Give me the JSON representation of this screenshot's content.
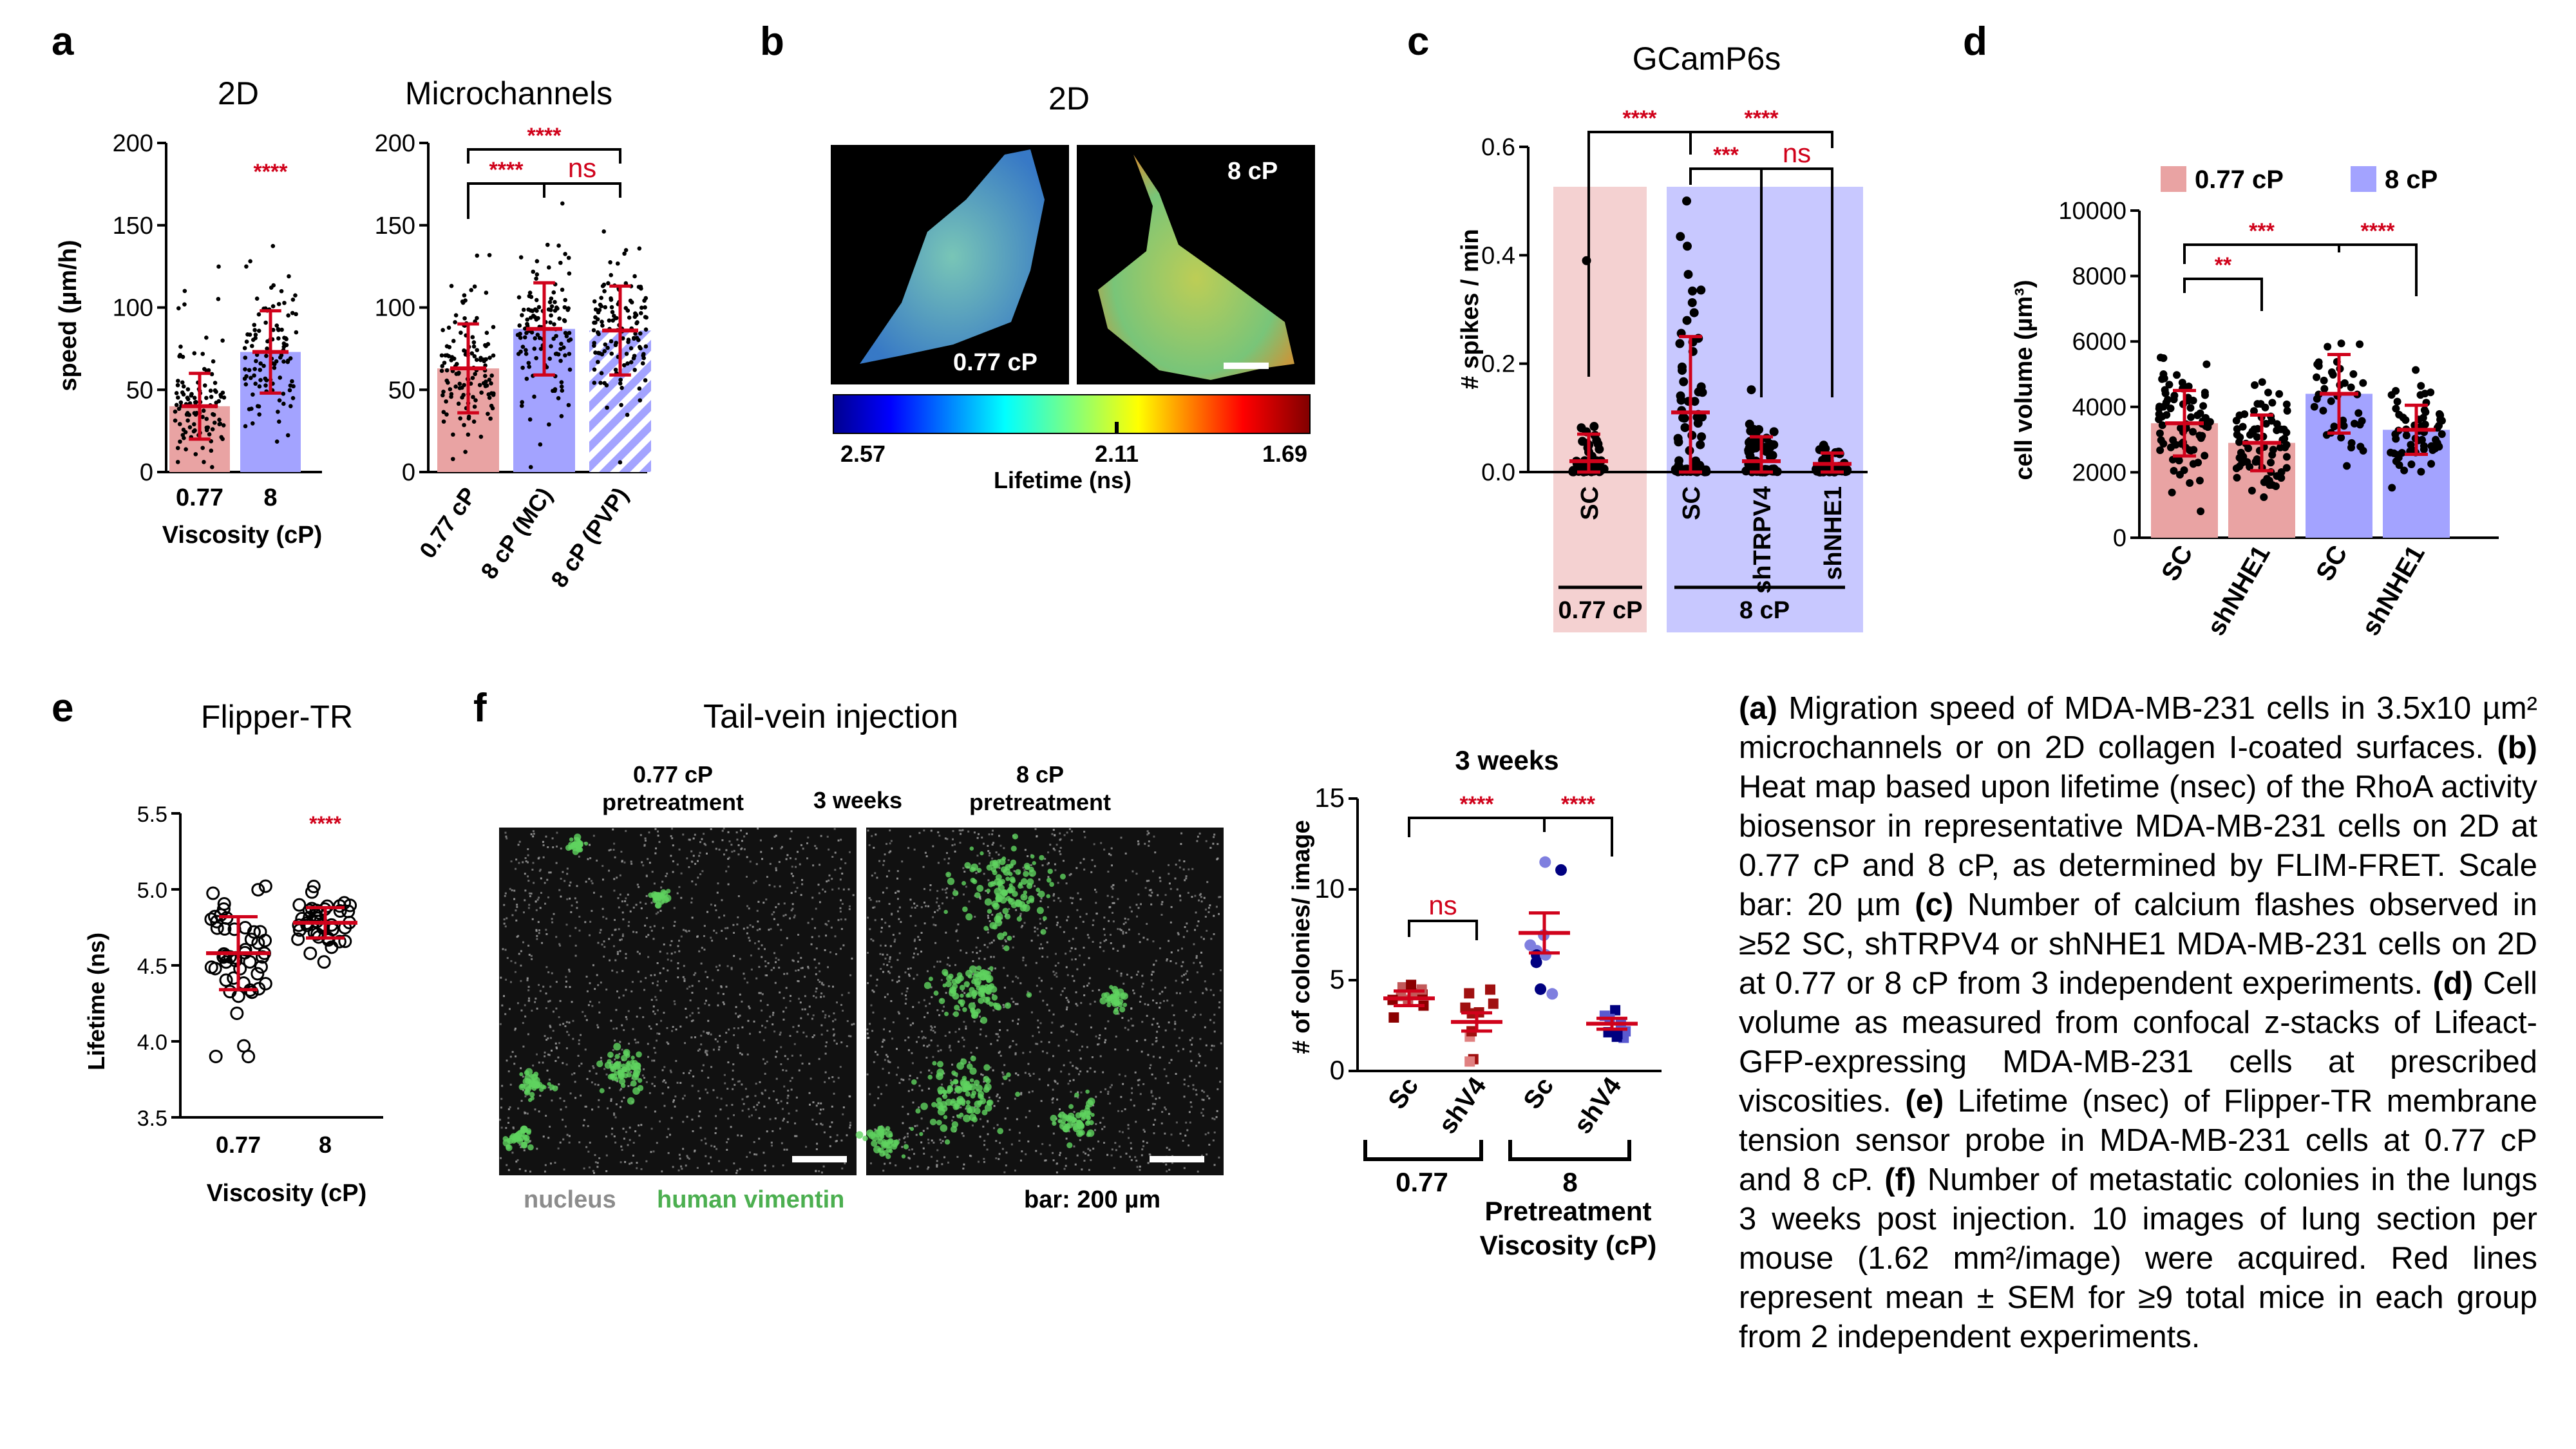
{
  "panels": {
    "a": {
      "letter": "a",
      "title_2d": "2D",
      "title_mc": "Microchannels",
      "ylabel": "speed (µm/h)",
      "xlabel": "Viscosity (cP)",
      "yticks": [
        "0",
        "50",
        "100",
        "150",
        "200"
      ],
      "cats_2d": [
        "0.77",
        "8"
      ],
      "cats_mc": [
        "0.77 cP",
        "8 cP (MC)",
        "8 cP (PVP)"
      ],
      "sig_2d": "****",
      "sig_mc_1": "****",
      "sig_mc_2": "****",
      "sig_mc_3": "ns"
    },
    "b": {
      "letter": "b",
      "title": "2D",
      "label_left": "0.77 cP",
      "label_right": "8 cP",
      "cb_ticks": [
        "2.57",
        "2.11",
        "1.69"
      ],
      "cb_label": "Lifetime (ns)"
    },
    "c": {
      "letter": "c",
      "title": "GCamP6s",
      "ylabel": "# spikes / min",
      "yticks": [
        "0.0",
        "0.2",
        "0.4",
        "0.6"
      ],
      "cats": [
        "SC",
        "SC",
        "shTRPV4",
        "shNHE1"
      ],
      "group_1": "0.77 cP",
      "group_2": "8 cP",
      "sig_1": "****",
      "sig_2": "****",
      "sig_3": "***",
      "sig_4": "ns"
    },
    "d": {
      "letter": "d",
      "legend_1": "0.77 cP",
      "legend_2": "8 cP",
      "ylabel": "cell volume (µm³)",
      "yticks": [
        "0",
        "2000",
        "4000",
        "6000",
        "8000",
        "10000"
      ],
      "cats": [
        "SC",
        "shNHE1",
        "SC",
        "shNHE1"
      ],
      "sig_1": "**",
      "sig_2": "***",
      "sig_3": "****"
    },
    "e": {
      "letter": "e",
      "title": "Flipper-TR",
      "ylabel": "Lifetime (ns)",
      "xlabel": "Viscosity (cP)",
      "yticks": [
        "3.5",
        "4.0",
        "4.5",
        "5.0",
        "5.5"
      ],
      "cats": [
        "0.77",
        "8"
      ],
      "sig": "****"
    },
    "f": {
      "letter": "f",
      "title": "Tail-vein injection",
      "img_label_left": "0.77 cP\npretreatment",
      "img_label_mid": "3 weeks",
      "img_label_right": "8 cP\npretreatment",
      "legend_nucleus": "nucleus",
      "legend_vimentin": "human vimentin",
      "scalebar": "bar: 200 µm",
      "chart_title": "3 weeks",
      "ylabel": "# of colonies/ image",
      "yticks": [
        "0",
        "5",
        "10",
        "15"
      ],
      "cats": [
        "Sc",
        "shV4",
        "Sc",
        "shV4"
      ],
      "group_1": "0.77",
      "group_2": "8",
      "xlabel": "Pretreatment\nViscosity (cP)",
      "sig_1": "****",
      "sig_2": "****",
      "sig_3": "ns"
    }
  },
  "caption": [
    {
      "bold": "(a)",
      "text": " Migration speed of MDA-MB-231 cells in 3.5x10 µm² microchannels or on 2D collagen I-coated surfaces. "
    },
    {
      "bold": "(b)",
      "text": " Heat map based upon lifetime (nsec) of the RhoA activity biosensor in representative MDA-MB-231 cells on 2D at 0.77 cP and 8 cP, as determined by FLIM-FRET. Scale bar: 20 µm "
    },
    {
      "bold": "(c)",
      "text": " Number of calcium flashes observed in ≥52 SC, shTRPV4 or shNHE1 MDA-MB-231 cells on 2D at 0.77 or 8 cP from 3 independent experiments. "
    },
    {
      "bold": "(d)",
      "text": " Cell volume as measured from confocal z-stacks of Lifeact-GFP-expressing MDA-MB-231 cells at prescribed viscosities. "
    },
    {
      "bold": "(e)",
      "text": " Lifetime (nsec) of Flipper-TR membrane tension sensor probe in MDA-MB-231 cells at 0.77 cP and 8 cP. "
    },
    {
      "bold": "(f)",
      "text": " Number of metastatic colonies in the lungs 3 weeks post injection. 10 images of lung section per mouse (1.62 mm²/image) were acquired. Red lines represent mean ± SEM for ≥9 total mice in each group from 2 independent experiments."
    }
  ],
  "colors": {
    "pink": "#e9a3a3",
    "blue": "#a3a3ff",
    "red": "#d0021b",
    "dark_red": "#8b0000",
    "navy": "#000080"
  },
  "chart_data": [
    {
      "panel": "a-2D",
      "type": "bar",
      "categories": [
        "0.77",
        "8"
      ],
      "values": [
        40,
        73
      ],
      "sd": [
        20,
        25
      ],
      "ylim": [
        0,
        200
      ],
      "ylabel": "speed (µm/h)",
      "xlabel": "Viscosity (cP)"
    },
    {
      "panel": "a-Microchannels",
      "type": "bar",
      "categories": [
        "0.77 cP",
        "8 cP (MC)",
        "8 cP (PVP)"
      ],
      "values": [
        63,
        87,
        86
      ],
      "sd": [
        27,
        28,
        27
      ],
      "ylim": [
        0,
        200
      ]
    },
    {
      "panel": "c",
      "type": "scatter",
      "categories": [
        "SC",
        "SC",
        "shTRPV4",
        "shNHE1"
      ],
      "mean": [
        0.02,
        0.11,
        0.02,
        0.015
      ],
      "sd": [
        0.05,
        0.14,
        0.045,
        0.02
      ],
      "ylim": [
        0,
        0.6
      ],
      "ylabel": "# spikes / min"
    },
    {
      "panel": "d",
      "type": "bar",
      "categories": [
        "SC",
        "shNHE1",
        "SC",
        "shNHE1"
      ],
      "values": [
        3500,
        2900,
        4400,
        3300
      ],
      "sd": [
        1000,
        850,
        1200,
        750
      ],
      "ylim": [
        0,
        10000
      ],
      "ylabel": "cell volume (µm³)"
    },
    {
      "panel": "e",
      "type": "scatter",
      "categories": [
        "0.77",
        "8"
      ],
      "mean": [
        4.58,
        4.78
      ],
      "sd": [
        0.24,
        0.1
      ],
      "ylim": [
        3.5,
        5.5
      ],
      "ylabel": "Lifetime (ns)"
    },
    {
      "panel": "f",
      "type": "scatter",
      "categories": [
        "Sc",
        "shV4",
        "Sc",
        "shV4"
      ],
      "mean": [
        4.0,
        2.7,
        7.6,
        2.6
      ],
      "sem": [
        0.4,
        0.5,
        1.1,
        0.3
      ],
      "ylim": [
        0,
        15
      ],
      "ylabel": "# of colonies/ image"
    }
  ]
}
